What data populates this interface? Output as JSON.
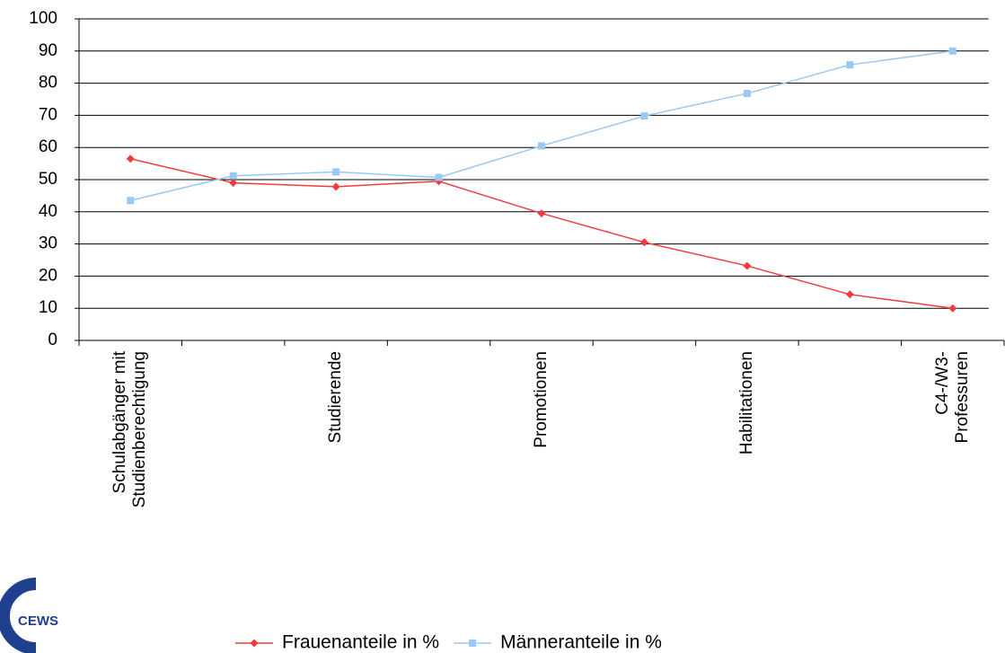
{
  "chart_data": {
    "type": "line",
    "categories": [
      "Schulabgänger mit\nStudienberechtigung",
      null,
      "Studierende",
      null,
      "Promotionen",
      null,
      "Habilitationen",
      null,
      "C4-/W3-Professuren"
    ],
    "series": [
      {
        "name": "Frauenanteile in %",
        "color": "#f03c3c",
        "marker": "diamond",
        "values": [
          56.5,
          49,
          47.8,
          49.5,
          39.5,
          30.5,
          23.2,
          14.3,
          10
        ]
      },
      {
        "name": "Männeranteile in %",
        "color": "#99c8f5",
        "marker": "square",
        "values": [
          43.5,
          51.2,
          52.4,
          50.7,
          60.5,
          69.8,
          76.8,
          85.7,
          90
        ]
      }
    ],
    "ylim": [
      0,
      100
    ],
    "yticks": [
      0,
      10,
      20,
      30,
      40,
      50,
      60,
      70,
      80,
      90,
      100
    ],
    "grid": true,
    "legend": "bottom",
    "logo_text": "CEWS"
  }
}
